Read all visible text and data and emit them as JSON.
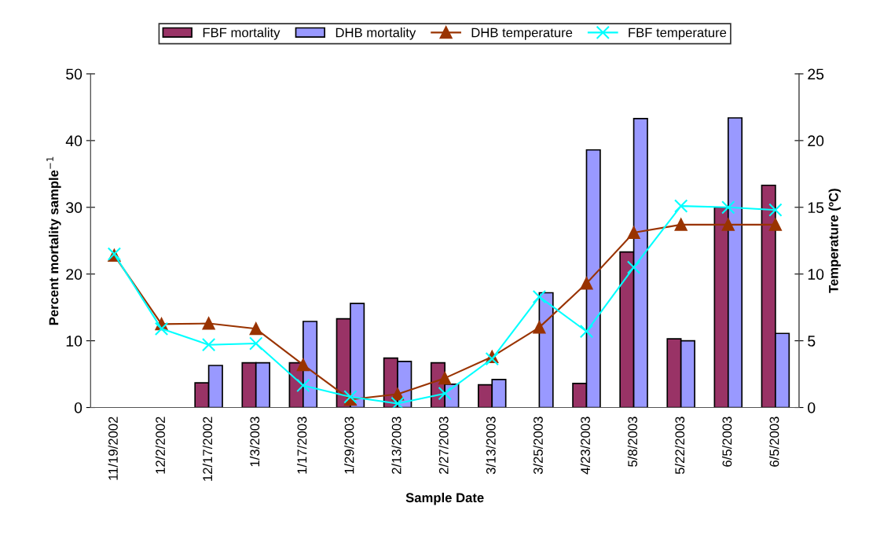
{
  "chart_data": {
    "type": "bar",
    "xlabel": "Sample Date",
    "ylabel": "Percent mortality sample$^{−1}$",
    "y2label": "Temperature (ºC)",
    "categories": [
      "11/19/2002",
      "12/2/2002",
      "12/17/2002",
      "1/3/2003",
      "1/17/2003",
      "1/29/2003",
      "2/13/2003",
      "2/27/2003",
      "3/13/2003",
      "3/25/2003",
      "4/23/2003",
      "5/8/2003",
      "5/22/2003",
      "6/5/2003",
      "6/5/2003"
    ],
    "series": [
      {
        "name": "FBF mortality",
        "color": "#993366",
        "values": [
          null,
          null,
          3.7,
          6.7,
          6.7,
          13.3,
          7.4,
          6.7,
          3.4,
          null,
          3.6,
          23.3,
          10.3,
          30,
          33.3
        ]
      },
      {
        "name": "DHB mortality",
        "color": "#9999ff",
        "values": [
          null,
          null,
          6.3,
          6.7,
          12.9,
          15.6,
          6.9,
          3.5,
          4.2,
          17.2,
          38.6,
          43.3,
          10.0,
          43.4,
          11.1
        ]
      },
      {
        "name": "DHB temperature",
        "type": "line",
        "axis": "y2",
        "marker": "triangle",
        "color": "#993300",
        "values": [
          11.4,
          6.25,
          6.3,
          5.9,
          3.2,
          0.6,
          1.0,
          2.2,
          3.8,
          6.0,
          9.3,
          13.1,
          13.7,
          13.7,
          13.7
        ]
      },
      {
        "name": "FBF temperature",
        "type": "line",
        "axis": "y2",
        "marker": "cross",
        "color": "#00ffff",
        "values": [
          11.5,
          5.9,
          4.7,
          4.8,
          1.65,
          0.8,
          0.3,
          1.05,
          3.65,
          8.3,
          5.7,
          10.5,
          15.1,
          15.0,
          14.8
        ]
      }
    ],
    "ylim": [
      0,
      50
    ],
    "yticks": [
      0,
      10,
      20,
      30,
      40,
      50
    ],
    "y2lim": [
      0,
      25
    ],
    "y2ticks": [
      0,
      5,
      10,
      15,
      20,
      25
    ],
    "legend": "top",
    "grid": false
  }
}
